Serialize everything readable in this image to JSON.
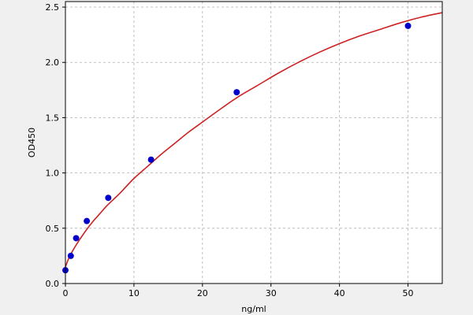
{
  "chart_data": {
    "type": "scatter",
    "title": "",
    "xlabel": "ng/ml",
    "ylabel": "OD450",
    "xlim": [
      0,
      55
    ],
    "ylim": [
      0,
      2.55
    ],
    "xticks": [
      0,
      10,
      20,
      30,
      40,
      50
    ],
    "yticks": [
      0.0,
      0.5,
      1.0,
      1.5,
      2.0,
      2.5
    ],
    "xtick_labels": [
      "0",
      "10",
      "20",
      "30",
      "40",
      "50"
    ],
    "ytick_labels": [
      "0.0",
      "0.5",
      "1.0",
      "1.5",
      "2.0",
      "2.5"
    ],
    "grid": true,
    "series": [
      {
        "x": [
          0,
          0.78,
          1.56,
          3.12,
          6.25,
          12.5,
          25,
          50
        ],
        "y": [
          0.12,
          0.25,
          0.41,
          0.565,
          0.775,
          1.12,
          1.73,
          2.33
        ],
        "color": "#0000cc"
      }
    ],
    "fit_curve": {
      "color": "#cc2222",
      "x": [
        0,
        0.5,
        1,
        2,
        3,
        4,
        5,
        6,
        7,
        8,
        10,
        12,
        14,
        16,
        18,
        20,
        22,
        25,
        28,
        31,
        34,
        37,
        40,
        43,
        46,
        49,
        52,
        55
      ],
      "y": [
        0.15,
        0.23,
        0.29,
        0.39,
        0.48,
        0.56,
        0.63,
        0.7,
        0.76,
        0.82,
        0.95,
        1.06,
        1.17,
        1.27,
        1.37,
        1.46,
        1.55,
        1.68,
        1.79,
        1.9,
        2.0,
        2.09,
        2.17,
        2.24,
        2.3,
        2.36,
        2.41,
        2.45
      ]
    }
  }
}
